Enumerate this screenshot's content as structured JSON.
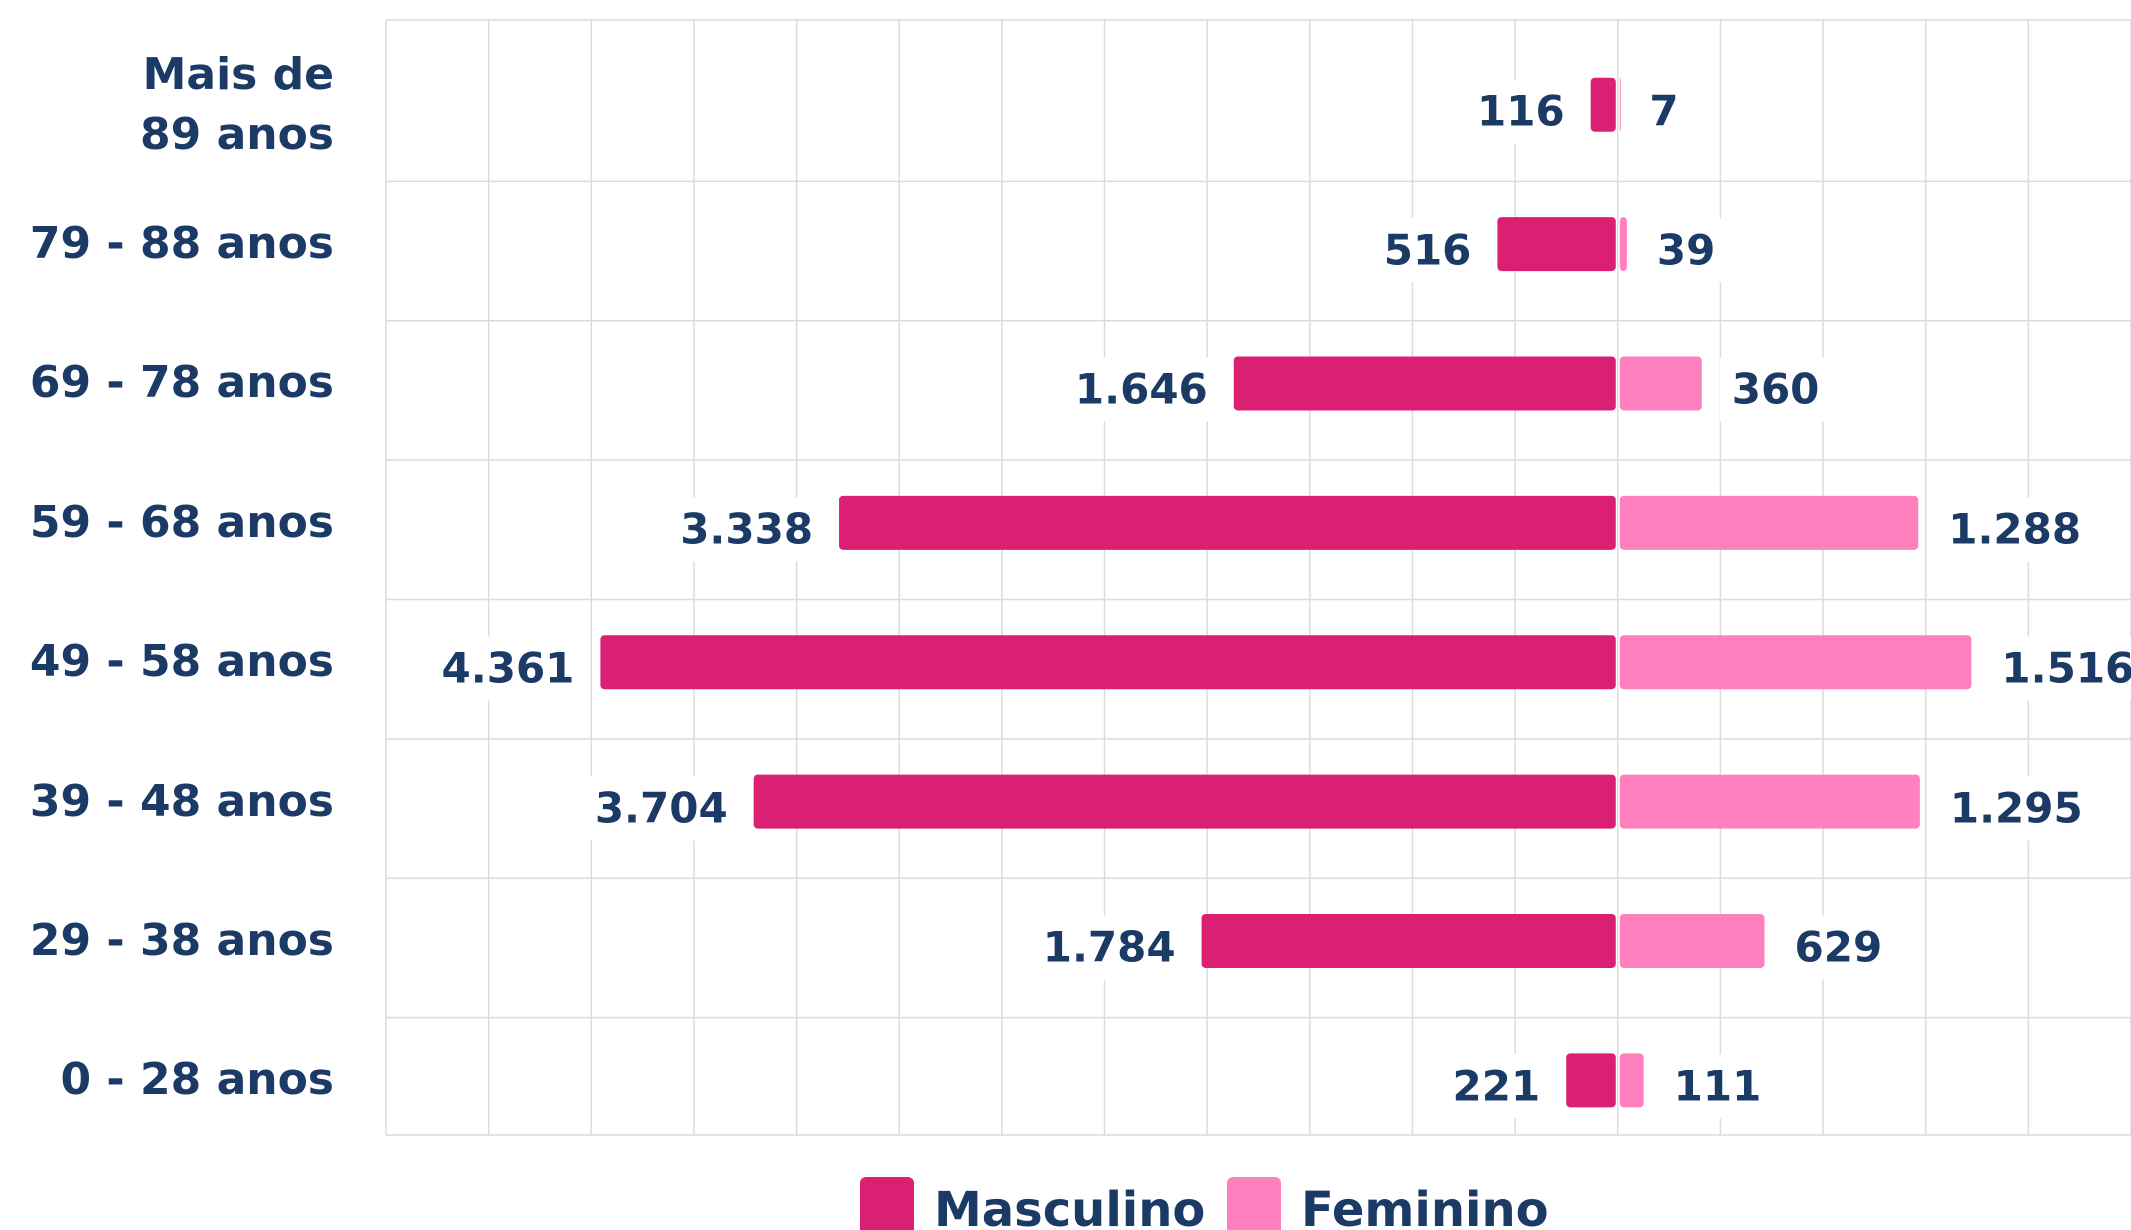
{
  "chart_data": {
    "type": "pyramid",
    "categories": [
      "Mais de\n89 anos",
      "79 - 88 anos",
      "69 - 78 anos",
      "59 - 68 anos",
      "49 - 58 anos",
      "39 - 48 anos",
      "29 - 38 anos",
      "0 - 28 anos"
    ],
    "series": [
      {
        "name": "Masculino",
        "color": "#db1f72",
        "side": "left",
        "values": [
          116,
          516,
          1646,
          3338,
          4361,
          3704,
          1784,
          221
        ],
        "value_labels": [
          "116",
          "516",
          "1.646",
          "3.338",
          "4.361",
          "3.704",
          "1.784",
          "221"
        ]
      },
      {
        "name": "Feminino",
        "color": "#ff80bf",
        "side": "right",
        "values": [
          7,
          39,
          360,
          1288,
          1516,
          1295,
          629,
          111
        ],
        "value_labels": [
          "7",
          "39",
          "360",
          "1.288",
          "1.516",
          "1.295",
          "629",
          "111"
        ]
      }
    ],
    "xlim": [
      -5280,
      2200
    ],
    "xticks": [
      -5280,
      -4840,
      -4400,
      -3960,
      -3520,
      -3080,
      -2640,
      -2200,
      -1760,
      -1320,
      -880,
      -440,
      0,
      440,
      880,
      1320,
      1760,
      2200
    ],
    "grid": true
  }
}
